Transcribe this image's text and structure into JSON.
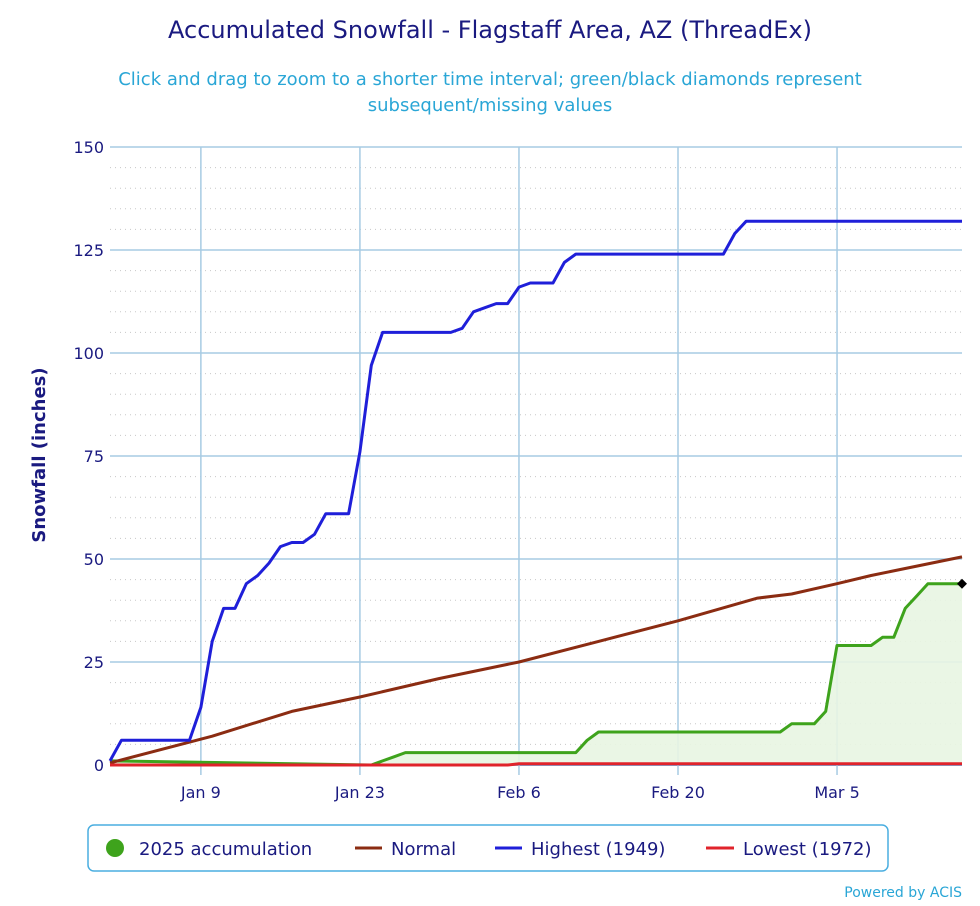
{
  "chart_data": {
    "type": "line",
    "title": "Accumulated Snowfall - Flagstaff Area, AZ (ThreadEx)",
    "subtitle_line1": "Click and drag to zoom to a shorter time interval; green/black diamonds represent",
    "subtitle_line2": "subsequent/missing values",
    "ylabel": "Snowfall (inches)",
    "xlabel": "",
    "ylim": [
      0,
      150
    ],
    "xlim": [
      1,
      73
    ],
    "y_ticks": [
      0,
      25,
      50,
      75,
      100,
      125,
      150
    ],
    "x_ticks": [
      {
        "day": 9,
        "label": "Jan 9"
      },
      {
        "day": 23,
        "label": "Jan 23"
      },
      {
        "day": 37,
        "label": "Feb 6"
      },
      {
        "day": 51,
        "label": "Feb 20"
      },
      {
        "day": 65,
        "label": "Mar 5"
      }
    ],
    "grid": true,
    "legend_placement": "bottom",
    "series": [
      {
        "name": "2025 accumulation",
        "color": "#3ea31c",
        "fill": "#e8f5e2",
        "points": [
          [
            1,
            1
          ],
          [
            24,
            0
          ],
          [
            25,
            1
          ],
          [
            26,
            2
          ],
          [
            27,
            3
          ],
          [
            28,
            3
          ],
          [
            35,
            3
          ],
          [
            40,
            3
          ],
          [
            42,
            3
          ],
          [
            43,
            6
          ],
          [
            44,
            8
          ],
          [
            52,
            8
          ],
          [
            59,
            8
          ],
          [
            60,
            8
          ],
          [
            61,
            10
          ],
          [
            63,
            10
          ],
          [
            64,
            13
          ],
          [
            65,
            29
          ],
          [
            67,
            29
          ],
          [
            68,
            29
          ],
          [
            69,
            31
          ],
          [
            70,
            31
          ],
          [
            71,
            38
          ],
          [
            72,
            41
          ],
          [
            73,
            44
          ],
          [
            76,
            44
          ]
        ]
      },
      {
        "name": "Normal",
        "color": "#8b2c12",
        "points": [
          [
            1,
            0.5
          ],
          [
            10,
            7
          ],
          [
            17,
            13
          ],
          [
            23,
            16.5
          ],
          [
            30,
            21
          ],
          [
            37,
            25
          ],
          [
            44,
            30
          ],
          [
            51,
            35
          ],
          [
            58,
            40.5
          ],
          [
            61,
            41.5
          ],
          [
            65,
            44
          ],
          [
            68,
            46
          ],
          [
            76,
            50.5
          ]
        ]
      },
      {
        "name": "Highest (1949)",
        "color": "#1f1fd9",
        "points": [
          [
            1,
            1
          ],
          [
            2,
            6
          ],
          [
            8,
            6
          ],
          [
            9,
            14
          ],
          [
            10,
            30
          ],
          [
            11,
            38
          ],
          [
            12,
            38
          ],
          [
            13,
            44
          ],
          [
            14,
            46
          ],
          [
            15,
            49
          ],
          [
            16,
            53
          ],
          [
            17,
            54
          ],
          [
            18,
            54
          ],
          [
            19,
            56
          ],
          [
            20,
            61
          ],
          [
            21,
            61
          ],
          [
            22,
            61
          ],
          [
            23,
            76
          ],
          [
            24,
            97
          ],
          [
            25,
            105
          ],
          [
            26,
            105
          ],
          [
            31,
            105
          ],
          [
            32,
            106
          ],
          [
            33,
            110
          ],
          [
            34,
            111
          ],
          [
            35,
            112
          ],
          [
            36,
            112
          ],
          [
            37,
            116
          ],
          [
            38,
            117
          ],
          [
            40,
            117
          ],
          [
            41,
            122
          ],
          [
            42,
            124
          ],
          [
            55,
            124
          ],
          [
            56,
            129
          ],
          [
            57,
            132
          ],
          [
            76,
            132
          ]
        ]
      },
      {
        "name": "Lowest (1972)",
        "color": "#e0232b",
        "points": [
          [
            1,
            0
          ],
          [
            36,
            0
          ],
          [
            37,
            0.3
          ],
          [
            76,
            0.3
          ]
        ]
      }
    ],
    "missing_marker": {
      "day": 76,
      "value": 44,
      "color": "#000000"
    }
  },
  "credits": "Powered by ACIS",
  "colors": {
    "grid": "#a7cbe3",
    "minor_grid": "#c8c8c8",
    "axis": "#4a8fd1",
    "legend_border": "#4aaee0"
  }
}
